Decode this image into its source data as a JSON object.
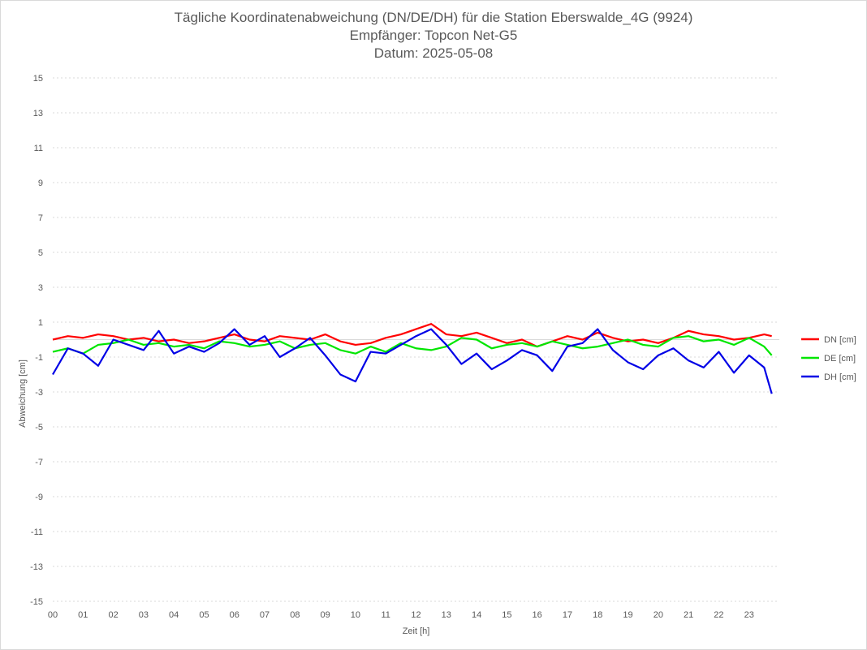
{
  "chart_data": {
    "type": "line",
    "title": "Tägliche Koordinatenabweichung (DN/DE/DH) für die Station Eberswalde_4G (9924)",
    "subtitle_receiver": "Empfänger: Topcon Net-G5",
    "subtitle_date": "Datum: 2025-05-08",
    "xlabel": "Zeit [h]",
    "ylabel": "Abweichung [cm]",
    "xlim": [
      0,
      24
    ],
    "ylim": [
      -15,
      15
    ],
    "x_ticks": [
      "00",
      "01",
      "02",
      "03",
      "04",
      "05",
      "06",
      "07",
      "08",
      "09",
      "10",
      "11",
      "12",
      "13",
      "14",
      "15",
      "16",
      "17",
      "18",
      "19",
      "20",
      "21",
      "22",
      "23"
    ],
    "y_ticks": [
      15,
      13,
      11,
      9,
      7,
      5,
      3,
      1,
      -1,
      -3,
      -5,
      -7,
      -9,
      -11,
      -13,
      -15
    ],
    "grid": "horizontal-dotted",
    "legend_position": "right",
    "x": [
      0,
      0.5,
      1,
      1.5,
      2,
      2.5,
      3,
      3.5,
      4,
      4.5,
      5,
      5.5,
      6,
      6.5,
      7,
      7.5,
      8,
      8.5,
      9,
      9.5,
      10,
      10.5,
      11,
      11.5,
      12,
      12.5,
      13,
      13.5,
      14,
      14.5,
      15,
      15.5,
      16,
      16.5,
      17,
      17.5,
      18,
      18.5,
      19,
      19.5,
      20,
      20.5,
      21,
      21.5,
      22,
      22.5,
      23,
      23.5,
      23.75
    ],
    "series": [
      {
        "name": "DN [cm]",
        "color": "#ff0000",
        "values": [
          0.0,
          0.2,
          0.1,
          0.3,
          0.2,
          0.0,
          0.1,
          -0.1,
          0.0,
          -0.2,
          -0.1,
          0.1,
          0.3,
          0.0,
          -0.1,
          0.2,
          0.1,
          0.0,
          0.3,
          -0.1,
          -0.3,
          -0.2,
          0.1,
          0.3,
          0.6,
          0.9,
          0.3,
          0.2,
          0.4,
          0.1,
          -0.2,
          0.0,
          -0.4,
          -0.1,
          0.2,
          0.0,
          0.4,
          0.1,
          -0.1,
          0.0,
          -0.2,
          0.1,
          0.5,
          0.3,
          0.2,
          0.0,
          0.1,
          0.3,
          0.2
        ]
      },
      {
        "name": "DE [cm]",
        "color": "#00e600",
        "values": [
          -0.7,
          -0.5,
          -0.8,
          -0.3,
          -0.2,
          0.0,
          -0.3,
          -0.2,
          -0.4,
          -0.3,
          -0.5,
          -0.1,
          -0.2,
          -0.4,
          -0.3,
          -0.1,
          -0.5,
          -0.3,
          -0.2,
          -0.6,
          -0.8,
          -0.4,
          -0.7,
          -0.2,
          -0.5,
          -0.6,
          -0.4,
          0.1,
          0.0,
          -0.5,
          -0.3,
          -0.2,
          -0.4,
          -0.1,
          -0.3,
          -0.5,
          -0.4,
          -0.2,
          0.0,
          -0.3,
          -0.4,
          0.1,
          0.2,
          -0.1,
          0.0,
          -0.3,
          0.1,
          -0.4,
          -0.9
        ]
      },
      {
        "name": "DH [cm]",
        "color": "#0000e6",
        "values": [
          -2.0,
          -0.5,
          -0.8,
          -1.5,
          0.0,
          -0.3,
          -0.6,
          0.5,
          -0.8,
          -0.4,
          -0.7,
          -0.2,
          0.6,
          -0.3,
          0.2,
          -1.0,
          -0.5,
          0.1,
          -0.9,
          -2.0,
          -2.4,
          -0.7,
          -0.8,
          -0.3,
          0.2,
          0.6,
          -0.3,
          -1.4,
          -0.8,
          -1.7,
          -1.2,
          -0.6,
          -0.9,
          -1.8,
          -0.4,
          -0.2,
          0.6,
          -0.6,
          -1.3,
          -1.7,
          -0.9,
          -0.5,
          -1.2,
          -1.6,
          -0.7,
          -1.9,
          -0.9,
          -1.6,
          -3.1
        ]
      }
    ]
  }
}
